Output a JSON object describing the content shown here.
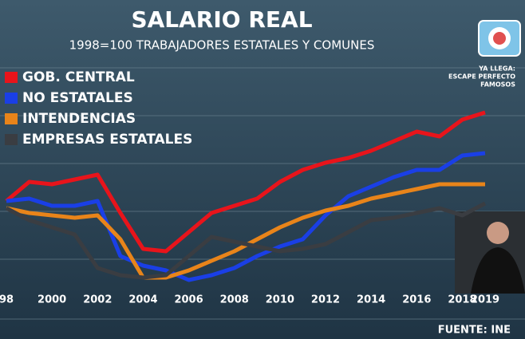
{
  "chart_data": {
    "type": "line",
    "title": "SALARIO REAL",
    "subtitle": "1998=100 TRABAJADORES ESTATALES Y COMUNES",
    "source": "FUENTE: INE",
    "x": [
      1998,
      1999,
      2000,
      2001,
      2002,
      2003,
      2004,
      2005,
      2006,
      2007,
      2008,
      2009,
      2010,
      2011,
      2012,
      2013,
      2014,
      2015,
      2016,
      2017,
      2018,
      2019
    ],
    "xlim": [
      1998,
      2019
    ],
    "xticks": [
      {
        "value": 1998,
        "label": "98"
      },
      2000,
      2002,
      2004,
      2006,
      2008,
      2010,
      2012,
      2014,
      2016,
      2018,
      2019
    ],
    "ylim": [
      60,
      160
    ],
    "legend": "top-left",
    "series": [
      {
        "name": "GOB. CENTRAL",
        "color": "#e8141b",
        "values": [
          100,
          108,
          107,
          109,
          111,
          95,
          80,
          79,
          87,
          95,
          98,
          101,
          108,
          113,
          116,
          118,
          121,
          125,
          129,
          127,
          134,
          137
        ]
      },
      {
        "name": "NO ESTATALES",
        "color": "#1a3fe6",
        "values": [
          100,
          101,
          98,
          98,
          100,
          77,
          73,
          71,
          67,
          69,
          72,
          77,
          81,
          84,
          94,
          102,
          106,
          110,
          113,
          113,
          119,
          120
        ]
      },
      {
        "name": "INTENDENCIAS",
        "color": "#e8841a",
        "values": [
          97,
          95,
          94,
          93,
          94,
          84,
          68,
          68,
          71,
          75,
          79,
          84,
          89,
          93,
          96,
          98,
          101,
          103,
          105,
          107,
          107,
          107
        ]
      },
      {
        "name": "EMPRESAS ESTATALES",
        "color": "#3a3d42",
        "values": [
          97,
          92,
          89,
          86,
          72,
          69,
          68,
          69,
          77,
          85,
          83,
          81,
          79,
          80,
          82,
          87,
          92,
          93,
          95,
          97,
          94,
          99
        ]
      }
    ]
  },
  "overlay": {
    "promo": [
      "YA LLEGA:",
      "ESCAPE PERFECTO",
      "FAMOSOS"
    ]
  }
}
